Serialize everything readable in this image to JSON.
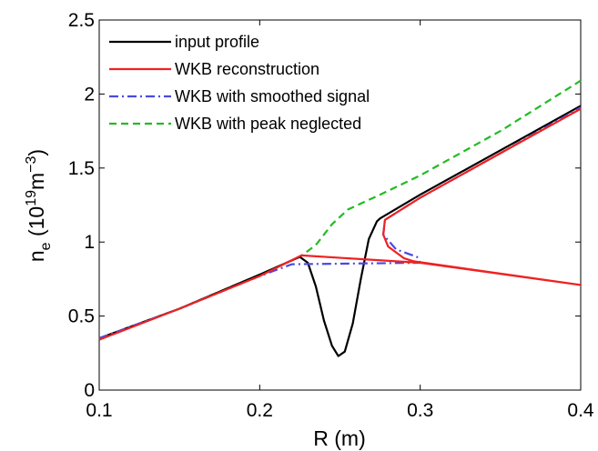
{
  "chart_data": {
    "type": "line",
    "xlabel": "R (m)",
    "ylabel_main": "n",
    "ylabel_sub": "e",
    "ylabel_open": " (10",
    "ylabel_exp1": "19",
    "ylabel_unit": "m",
    "ylabel_exp2": "−3",
    "ylabel_close": ")",
    "xlim": [
      0.1,
      0.4
    ],
    "ylim": [
      0,
      2.5
    ],
    "xticks": [
      0.1,
      0.2,
      0.3,
      0.4
    ],
    "xtick_labels": [
      "0.1",
      "0.2",
      "0.3",
      "0.4"
    ],
    "yticks": [
      0,
      0.5,
      1,
      1.5,
      2,
      2.5
    ],
    "ytick_labels": [
      "0",
      "0.5",
      "1",
      "1.5",
      "2",
      "2.5"
    ],
    "grid": false,
    "legend_position": "top-left",
    "series": [
      {
        "name": "input profile",
        "color": "#000000",
        "dash": "solid",
        "points": [
          [
            0.1,
            0.35
          ],
          [
            0.15,
            0.55
          ],
          [
            0.2,
            0.78
          ],
          [
            0.225,
            0.9
          ],
          [
            0.23,
            0.86
          ],
          [
            0.235,
            0.7
          ],
          [
            0.24,
            0.47
          ],
          [
            0.245,
            0.3
          ],
          [
            0.249,
            0.23
          ],
          [
            0.253,
            0.26
          ],
          [
            0.258,
            0.45
          ],
          [
            0.263,
            0.75
          ],
          [
            0.268,
            1.02
          ],
          [
            0.273,
            1.14
          ],
          [
            0.275,
            1.16
          ],
          [
            0.3,
            1.32
          ],
          [
            0.35,
            1.62
          ],
          [
            0.4,
            1.92
          ]
        ]
      },
      {
        "name": "WKB reconstruction",
        "color": "#ee2222",
        "dash": "solid",
        "points": [
          [
            0.1,
            0.34
          ],
          [
            0.15,
            0.55
          ],
          [
            0.2,
            0.77
          ],
          [
            0.226,
            0.91
          ],
          [
            0.3,
            0.86
          ],
          [
            0.4,
            0.71
          ],
          [
            0.296,
            0.87
          ],
          [
            0.29,
            0.89
          ],
          [
            0.28,
            0.97
          ],
          [
            0.277,
            1.05
          ],
          [
            0.278,
            1.15
          ],
          [
            0.3,
            1.3
          ],
          [
            0.35,
            1.6
          ],
          [
            0.4,
            1.9
          ]
        ]
      },
      {
        "name": "WKB with smoothed signal",
        "color": "#4a4ae0",
        "dash": "10,4,2,4",
        "points": [
          [
            0.1,
            0.35
          ],
          [
            0.15,
            0.55
          ],
          [
            0.2,
            0.77
          ],
          [
            0.22,
            0.85
          ],
          [
            0.3,
            0.86
          ],
          [
            0.298,
            0.9
          ],
          [
            0.285,
            0.95
          ],
          [
            0.277,
            1.05
          ],
          [
            0.278,
            1.15
          ],
          [
            0.3,
            1.3
          ],
          [
            0.35,
            1.6
          ],
          [
            0.4,
            1.91
          ]
        ]
      },
      {
        "name": "WKB with peak neglected",
        "color": "#22bb22",
        "dash": "8,5",
        "points": [
          [
            0.1,
            0.35
          ],
          [
            0.15,
            0.55
          ],
          [
            0.2,
            0.78
          ],
          [
            0.225,
            0.9
          ],
          [
            0.235,
            0.98
          ],
          [
            0.245,
            1.12
          ],
          [
            0.255,
            1.22
          ],
          [
            0.275,
            1.32
          ],
          [
            0.3,
            1.45
          ],
          [
            0.35,
            1.75
          ],
          [
            0.4,
            2.09
          ]
        ]
      }
    ]
  }
}
